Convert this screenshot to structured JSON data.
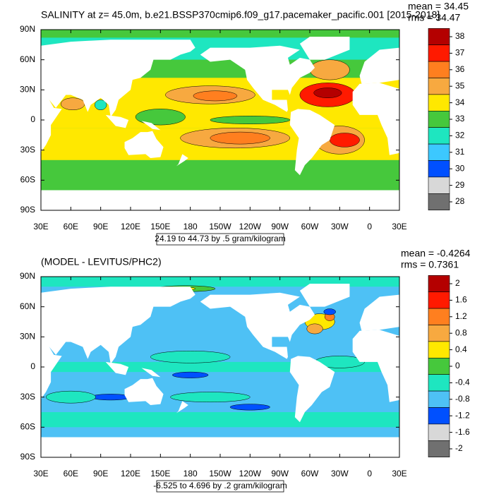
{
  "panels": [
    {
      "title": "SALINITY at z=  45.0m, b.e21.BSSP370cmip6.f09_g17.pacemaker_pacific.001 [2015-2018]",
      "mean": "mean = 34.45",
      "rms": "rms = 34.47",
      "caption": "24.19 to 44.73 by .5 gram/kilogram",
      "colorbar": {
        "labels": [
          38,
          37,
          36,
          35,
          34,
          33,
          32,
          31,
          30,
          29,
          28
        ],
        "colors": [
          "#b40000",
          "#ff1a00",
          "#ff7f1f",
          "#f7a940",
          "#ffe800",
          "#46c83c",
          "#1ee6c0",
          "#3cc8ff",
          "#0050ff",
          "#d8d8d8",
          "#707070"
        ]
      }
    },
    {
      "title": "(MODEL - LEVITUS/PHC2)",
      "mean": "mean = -0.4264",
      "rms": "rms = 0.7361",
      "caption": "-6.525 to 4.696 by .2 gram/kilogram",
      "colorbar": {
        "labels": [
          2,
          1.6,
          1.2,
          0.8,
          0.4,
          0,
          -0.4,
          -0.8,
          -1.2,
          -1.6,
          -2
        ],
        "colors": [
          "#b40000",
          "#ff1a00",
          "#ff7f1f",
          "#f7a940",
          "#ffe800",
          "#46c83c",
          "#1ee6c0",
          "#4ec1f5",
          "#0050ff",
          "#d8d8d8",
          "#707070"
        ]
      }
    }
  ],
  "lon_labels": [
    "30E",
    "60E",
    "90E",
    "120E",
    "150E",
    "180",
    "150W",
    "120W",
    "90W",
    "60W",
    "30W",
    "0",
    "30E"
  ],
  "lat_labels": [
    "90N",
    "60N",
    "30N",
    "0",
    "30S",
    "60S",
    "90S"
  ]
}
